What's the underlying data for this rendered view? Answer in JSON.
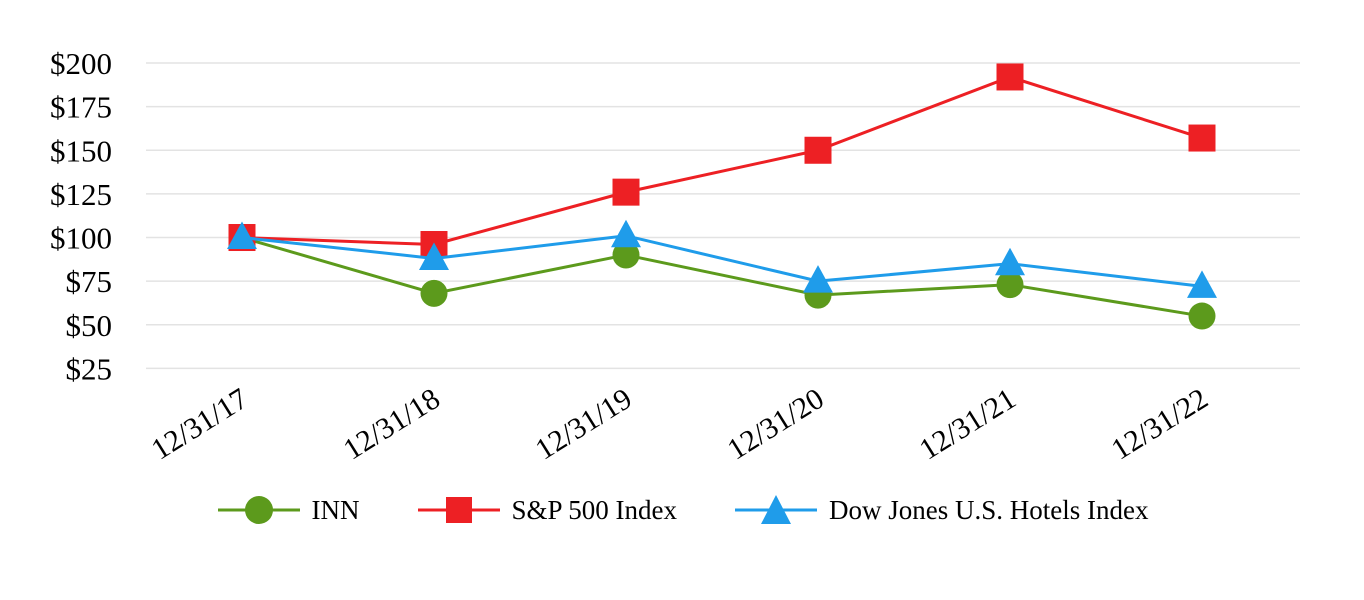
{
  "page": {
    "background": "#ffffff",
    "text_color": "#000000"
  },
  "chart_data": {
    "type": "line",
    "categories": [
      "12/31/17",
      "12/31/18",
      "12/31/19",
      "12/31/20",
      "12/31/21",
      "12/31/22"
    ],
    "series": [
      {
        "name": "INN",
        "marker": "circle",
        "color": "#5C9A1C",
        "values": [
          100,
          68,
          90,
          67,
          73,
          55
        ]
      },
      {
        "name": "S&P 500 Index",
        "marker": "square",
        "color": "#ED2024",
        "values": [
          100,
          96,
          126,
          150,
          192,
          157
        ]
      },
      {
        "name": "Dow Jones U.S. Hotels Index",
        "marker": "triangle",
        "color": "#1F9CEA",
        "values": [
          100,
          88,
          101,
          75,
          85,
          72
        ]
      }
    ],
    "y_ticks": [
      {
        "label": "$200",
        "value": 200
      },
      {
        "label": "$175",
        "value": 175
      },
      {
        "label": "$150",
        "value": 150
      },
      {
        "label": "$125",
        "value": 125
      },
      {
        "label": "$100",
        "value": 100
      },
      {
        "label": "$75",
        "value": 75
      },
      {
        "label": "$50",
        "value": 50
      },
      {
        "label": "$25",
        "value": 25
      }
    ],
    "ylim": [
      25,
      200
    ],
    "grid": "horizontal",
    "gridline_color": "#E3E3E3",
    "axis_label_color": "#000000",
    "legend_position": "bottom-center",
    "x_label_rotation_deg": -32
  }
}
